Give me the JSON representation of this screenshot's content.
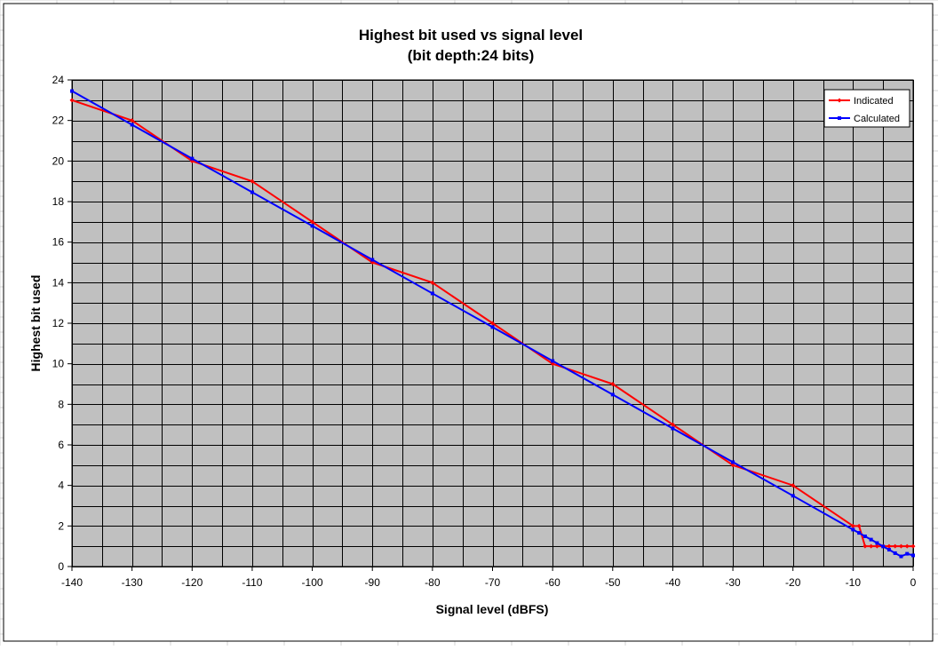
{
  "chart_data": {
    "type": "line",
    "title": "Highest bit used vs signal level",
    "subtitle": "(bit depth:24 bits)",
    "xlabel": "Signal level (dBFS)",
    "ylabel": "Highest bit used",
    "xlim": [
      -140,
      0
    ],
    "ylim": [
      0,
      24
    ],
    "x_ticks": [
      -140,
      -130,
      -120,
      -110,
      -100,
      -90,
      -80,
      -70,
      -60,
      -50,
      -40,
      -30,
      -20,
      -10,
      0
    ],
    "y_ticks": [
      0,
      2,
      4,
      6,
      8,
      10,
      12,
      14,
      16,
      18,
      20,
      22,
      24
    ],
    "grid": true,
    "legend_position": "top-right",
    "colors": {
      "plot_background": "#c0c0c0",
      "grid": "#000000",
      "sheet_grid": "#d4d4d4"
    },
    "series": [
      {
        "name": "Indicated",
        "color": "#ff0000",
        "marker": "diamond",
        "x": [
          -140,
          -130,
          -120,
          -110,
          -100,
          -90,
          -80,
          -70,
          -60,
          -50,
          -40,
          -30,
          -20,
          -10,
          -9,
          -8,
          -7,
          -6,
          -5,
          -4,
          -3,
          -2,
          -1,
          0
        ],
        "y": [
          23,
          22,
          20,
          19,
          17,
          15,
          14,
          12,
          10,
          9,
          7,
          5,
          4,
          2,
          2,
          1,
          1,
          1,
          1,
          1,
          1,
          1,
          1,
          1
        ]
      },
      {
        "name": "Calculated",
        "color": "#0000ff",
        "marker": "square",
        "x": [
          -140,
          -130,
          -120,
          -110,
          -100,
          -90,
          -80,
          -70,
          -60,
          -50,
          -40,
          -30,
          -20,
          -10,
          -9,
          -8,
          -7,
          -6,
          -5,
          -4,
          -3,
          -2,
          -1,
          0
        ],
        "y": [
          23.45,
          21.79,
          20.12,
          18.46,
          16.8,
          15.13,
          13.47,
          11.81,
          10.14,
          8.48,
          6.81,
          5.15,
          3.49,
          1.82,
          1.66,
          1.49,
          1.33,
          1.16,
          0.99,
          0.83,
          0.66,
          0.5,
          0.63,
          0.55
        ]
      }
    ]
  }
}
